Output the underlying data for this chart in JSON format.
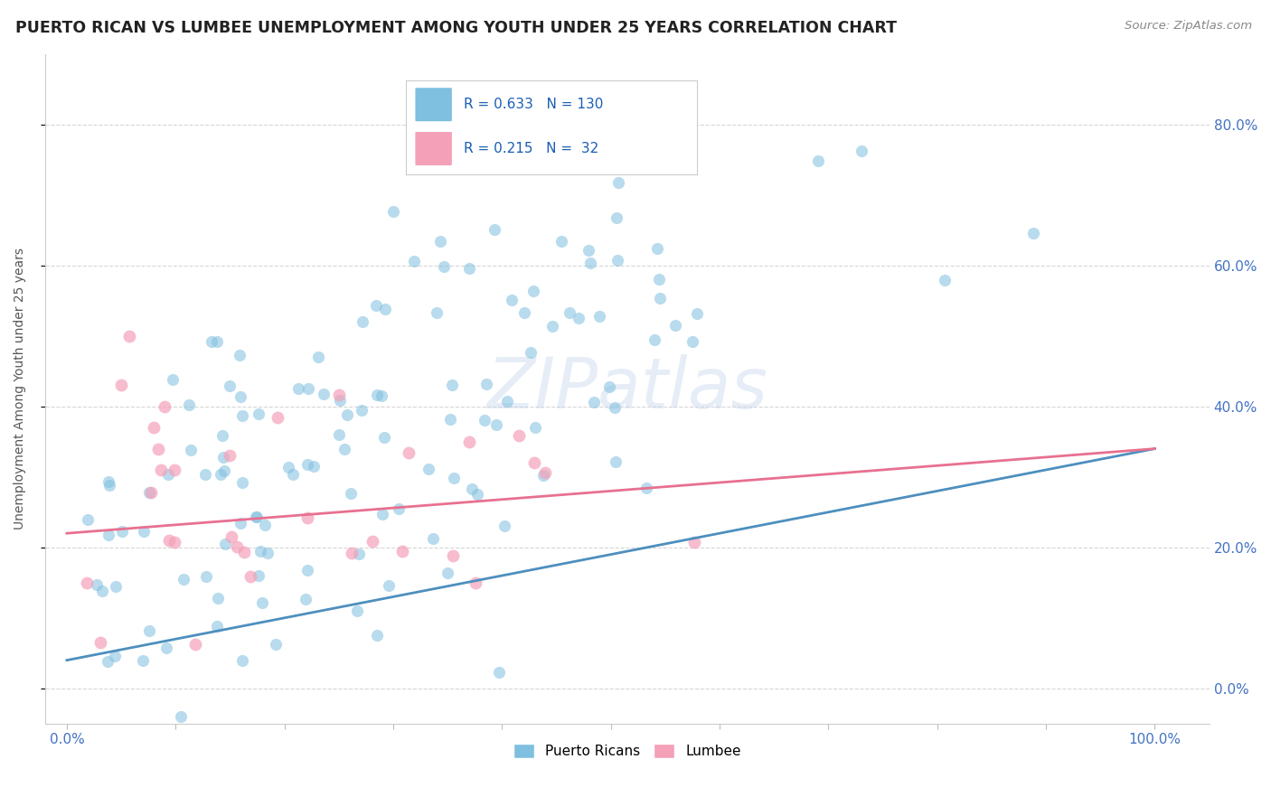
{
  "title": "PUERTO RICAN VS LUMBEE UNEMPLOYMENT AMONG YOUTH UNDER 25 YEARS CORRELATION CHART",
  "source": "Source: ZipAtlas.com",
  "ylabel": "Unemployment Among Youth under 25 years",
  "xlim": [
    -0.02,
    1.05
  ],
  "ylim": [
    -0.05,
    0.9
  ],
  "ytick_vals": [
    0.0,
    0.2,
    0.4,
    0.6,
    0.8
  ],
  "ytick_labels": [
    "0.0%",
    "20.0%",
    "40.0%",
    "60.0%",
    "80.0%"
  ],
  "xtick_vals": [
    0.0,
    0.1,
    0.2,
    0.3,
    0.4,
    0.5,
    0.6,
    0.7,
    0.8,
    0.9,
    1.0
  ],
  "xtick_labels": [
    "0.0%",
    "",
    "",
    "",
    "",
    "",
    "",
    "",
    "",
    "",
    "100.0%"
  ],
  "puerto_rican_color": "#7fbfdf",
  "lumbee_color": "#f4a0b8",
  "trend_pr_color": "#4d8fbe",
  "trend_lu_color": "#e87090",
  "R_puerto": 0.633,
  "N_puerto": 130,
  "R_lumbee": 0.215,
  "N_lumbee": 32,
  "watermark": "ZIPatlas",
  "background_color": "#ffffff",
  "legend_color": "#1a5fb4",
  "title_color": "#222222",
  "grid_color": "#cccccc",
  "axis_label_color": "#4472c4",
  "ylabel_color": "#555555"
}
